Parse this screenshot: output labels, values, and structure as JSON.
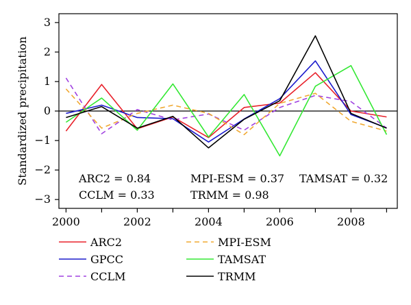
{
  "chart_data": {
    "type": "line",
    "ylabel": "Standardized precipitation",
    "x": [
      2000,
      2001,
      2002,
      2003,
      2004,
      2005,
      2006,
      2007,
      2008,
      2009
    ],
    "xticks": [
      "2000",
      "2002",
      "2004",
      "2006",
      "2008"
    ],
    "yticks": [
      "3",
      "2",
      "1",
      "0",
      "−1",
      "−2",
      "−3"
    ],
    "xlim": [
      1999.8,
      2009.3
    ],
    "ylim": [
      -3.3,
      3.3
    ],
    "zero_line": true,
    "series": [
      {
        "name": "ARC2",
        "color": "#e8202a",
        "dash": "solid",
        "values": [
          -0.68,
          0.9,
          -0.6,
          -0.2,
          -0.9,
          0.12,
          0.27,
          1.3,
          0.0,
          -0.2
        ]
      },
      {
        "name": "GPCC",
        "color": "#1a1acc",
        "dash": "solid",
        "values": [
          -0.08,
          0.2,
          -0.22,
          -0.26,
          -1.05,
          -0.27,
          0.42,
          1.7,
          -0.12,
          -0.57
        ]
      },
      {
        "name": "CCLM",
        "color": "#a040e0",
        "dash": "dashed",
        "values": [
          1.12,
          -0.77,
          0.05,
          -0.3,
          -0.1,
          -0.65,
          0.12,
          0.53,
          0.32,
          -0.58
        ]
      },
      {
        "name": "MPI-ESM",
        "color": "#f0a830",
        "dash": "dashed",
        "values": [
          0.75,
          -0.58,
          -0.08,
          0.2,
          -0.08,
          -0.8,
          0.26,
          0.6,
          -0.35,
          -0.68
        ]
      },
      {
        "name": "TAMSAT",
        "color": "#33e833",
        "dash": "solid",
        "values": [
          -0.38,
          0.44,
          -0.65,
          0.92,
          -0.88,
          0.56,
          -1.52,
          0.84,
          1.54,
          -0.8
        ]
      },
      {
        "name": "TRMM",
        "color": "#000000",
        "dash": "solid",
        "values": [
          -0.22,
          0.15,
          -0.58,
          -0.18,
          -1.25,
          -0.28,
          0.35,
          2.55,
          -0.08,
          -0.58
        ]
      }
    ],
    "annotations": [
      "ARC2 = 0.84",
      "CCLM = 0.33",
      "MPI-ESM = 0.37",
      "TRMM = 0.98",
      "TAMSAT = 0.32"
    ],
    "legend": {
      "placement": "bottom",
      "columns": 2
    }
  }
}
